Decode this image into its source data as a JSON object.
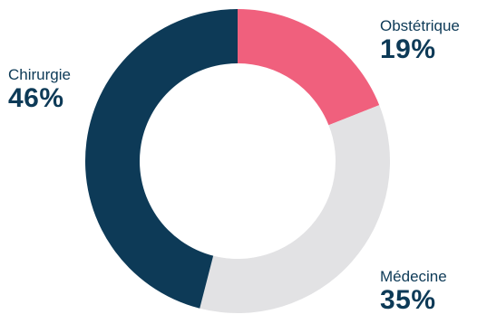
{
  "chart_data": {
    "type": "pie",
    "variant": "donut",
    "slices": [
      {
        "label": "Obstétrique",
        "value": 19,
        "display": "19%",
        "color": "#f0607d"
      },
      {
        "label": "Médecine",
        "value": 35,
        "display": "35%",
        "color": "#e2e2e4"
      },
      {
        "label": "Chirurgie",
        "value": 46,
        "display": "46%",
        "color": "#0d3a57"
      }
    ],
    "start": "top",
    "direction": "clockwise",
    "legend": "none",
    "label_color": "#0d3a57"
  }
}
